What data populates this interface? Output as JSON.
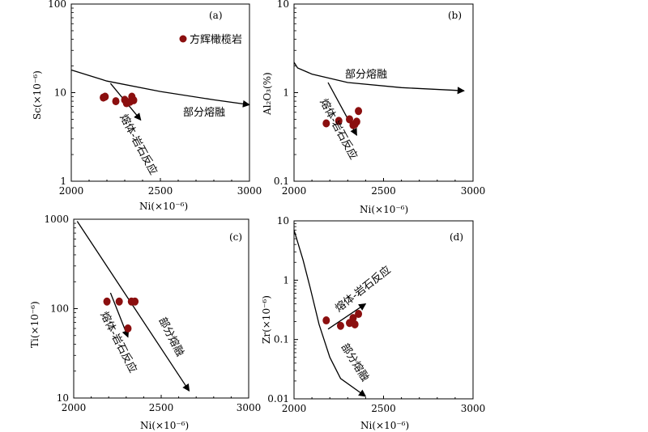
{
  "legend": {
    "label": "方辉橄榄岩",
    "color": "#8b0f0f"
  },
  "chart_data": [
    {
      "id": "a",
      "type": "scatter",
      "panel_label": "(a)",
      "xlabel": "Ni(×10⁻⁶)",
      "ylabel": "Sc(×10⁻⁶)",
      "xlim": [
        2000,
        3000
      ],
      "ylim": [
        1,
        100
      ],
      "yscale": "log",
      "xticks": [
        "2000",
        "2500",
        "3000"
      ],
      "xtick_values": [
        2000,
        2500,
        3000
      ],
      "yticks": [
        "1",
        "10",
        "100"
      ],
      "ytick_values": [
        1,
        10,
        100
      ],
      "points": [
        {
          "x": 2180,
          "y": 8.8
        },
        {
          "x": 2190,
          "y": 9.0
        },
        {
          "x": 2250,
          "y": 8.0
        },
        {
          "x": 2300,
          "y": 8.3
        },
        {
          "x": 2310,
          "y": 7.6
        },
        {
          "x": 2330,
          "y": 7.9
        },
        {
          "x": 2340,
          "y": 9.0
        },
        {
          "x": 2350,
          "y": 8.2
        }
      ],
      "arrows": [
        {
          "label": "部分熔融",
          "points": [
            [
              2000,
              18
            ],
            [
              2200,
              13.5
            ],
            [
              2500,
              10.3
            ],
            [
              2800,
              8.3
            ],
            [
              3000,
              7.3
            ]
          ]
        },
        {
          "label": "熔体-岩石反应",
          "points": [
            [
              2220,
              12.7
            ],
            [
              2390,
              4.9
            ]
          ]
        }
      ]
    },
    {
      "id": "b",
      "type": "scatter",
      "panel_label": "(b)",
      "xlabel": "Ni(×10⁻⁶)",
      "ylabel": "Al₂O₃(%)",
      "xlim": [
        2000,
        3000
      ],
      "ylim": [
        0.1,
        10
      ],
      "yscale": "log",
      "xticks": [
        "2000",
        "2500",
        "3000"
      ],
      "xtick_values": [
        2000,
        2500,
        3000
      ],
      "yticks": [
        "0.1",
        "1",
        "10"
      ],
      "ytick_values": [
        0.1,
        1,
        10
      ],
      "points": [
        {
          "x": 2180,
          "y": 0.45
        },
        {
          "x": 2250,
          "y": 0.48
        },
        {
          "x": 2310,
          "y": 0.5
        },
        {
          "x": 2330,
          "y": 0.43
        },
        {
          "x": 2340,
          "y": 0.44
        },
        {
          "x": 2350,
          "y": 0.47
        },
        {
          "x": 2360,
          "y": 0.62
        }
      ],
      "arrows": [
        {
          "label": "部分熔融",
          "points": [
            [
              2000,
              2.2
            ],
            [
              2020,
              1.9
            ],
            [
              2100,
              1.62
            ],
            [
              2300,
              1.3
            ],
            [
              2600,
              1.14
            ],
            [
              2950,
              1.05
            ]
          ]
        },
        {
          "label": "熔体-岩石反应",
          "points": [
            [
              2190,
              1.3
            ],
            [
              2350,
              0.33
            ]
          ]
        }
      ]
    },
    {
      "id": "c",
      "type": "scatter",
      "panel_label": "(c)",
      "xlabel": "Ni(×10⁻⁶)",
      "ylabel": "Ti(×10⁻⁶)",
      "xlim": [
        2000,
        3000
      ],
      "ylim": [
        10,
        1000
      ],
      "yscale": "log",
      "xticks": [
        "2000",
        "2500",
        "3000"
      ],
      "xtick_values": [
        2000,
        2500,
        3000
      ],
      "yticks": [
        "10",
        "100",
        "1000"
      ],
      "ytick_values": [
        10,
        100,
        1000
      ],
      "points": [
        {
          "x": 2190,
          "y": 120
        },
        {
          "x": 2260,
          "y": 120
        },
        {
          "x": 2330,
          "y": 120
        },
        {
          "x": 2350,
          "y": 120
        },
        {
          "x": 2310,
          "y": 60
        }
      ],
      "arrows": [
        {
          "label": "部分熔融",
          "points": [
            [
              2020,
              950
            ],
            [
              2660,
              12
            ]
          ]
        },
        {
          "label": "熔体-岩石反应",
          "points": [
            [
              2210,
              150
            ],
            [
              2310,
              48
            ]
          ]
        }
      ]
    },
    {
      "id": "d",
      "type": "scatter",
      "panel_label": "(d)",
      "xlabel": "Ni(×10⁻⁶)",
      "ylabel": "Zr(×10⁻⁶)",
      "xlim": [
        2000,
        3000
      ],
      "ylim": [
        0.01,
        10
      ],
      "yscale": "log",
      "xticks": [
        "2000",
        "2500",
        "3000"
      ],
      "xtick_values": [
        2000,
        2500,
        3000
      ],
      "yticks": [
        "0.01",
        "0.1",
        "1",
        "10"
      ],
      "ytick_values": [
        0.01,
        0.1,
        1,
        10
      ],
      "points": [
        {
          "x": 2180,
          "y": 0.21
        },
        {
          "x": 2260,
          "y": 0.17
        },
        {
          "x": 2310,
          "y": 0.19
        },
        {
          "x": 2330,
          "y": 0.23
        },
        {
          "x": 2340,
          "y": 0.18
        },
        {
          "x": 2360,
          "y": 0.27
        }
      ],
      "arrows": [
        {
          "label": "熔体-岩石反应",
          "points": [
            [
              2190,
              0.15
            ],
            [
              2400,
              0.4
            ]
          ]
        },
        {
          "label": "部分熔融",
          "points": [
            [
              2000,
              7.0
            ],
            [
              2050,
              2.2
            ],
            [
              2090,
              0.75
            ],
            [
              2140,
              0.18
            ],
            [
              2200,
              0.05
            ],
            [
              2260,
              0.022
            ],
            [
              2400,
              0.011
            ]
          ]
        }
      ]
    }
  ]
}
